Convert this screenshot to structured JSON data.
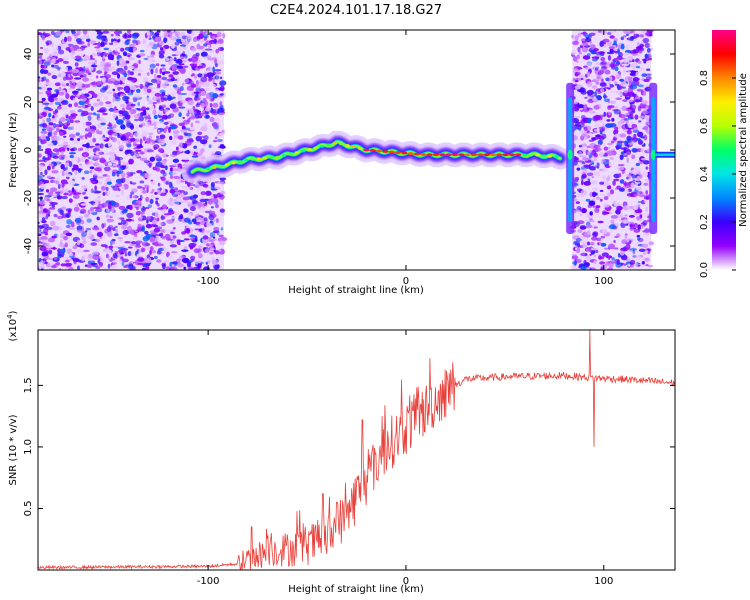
{
  "figure": {
    "title": "C2E4.2024.101.17.18.G27"
  },
  "chart_data": [
    {
      "type": "heatmap",
      "name": "spectrogram",
      "xlabel": "Height of straight line (km)",
      "ylabel": "Frequency (Hz)",
      "xlim": [
        -186,
        136
      ],
      "ylim": [
        -50,
        50
      ],
      "x_ticks": [
        -100,
        0,
        100
      ],
      "y_ticks": [
        -40,
        -20,
        0,
        20,
        40
      ],
      "grid": false,
      "colorbar": {
        "label": "Normalized spectral amplitude",
        "range": [
          0,
          1
        ],
        "ticks": [
          0.0,
          0.2,
          0.4,
          0.6,
          0.8
        ],
        "tick_labels": [
          "0.0",
          "0.2",
          "0.4",
          "0.6",
          "0.8"
        ],
        "colormap": [
          "#ffffff",
          "#9400ff",
          "#3a00ff",
          "#0088ff",
          "#00e5e5",
          "#00ff66",
          "#b6ff00",
          "#ffee00",
          "#ff8800",
          "#ff0000",
          "#ff0088"
        ]
      },
      "noise_regions": [
        {
          "x_range": [
            -186,
            -92
          ],
          "y_range": [
            -50,
            50
          ]
        },
        {
          "x_range": [
            84,
            124
          ],
          "y_range": [
            -50,
            50
          ]
        }
      ],
      "ridge": {
        "points": [
          [
            -108,
            -9
          ],
          [
            -95,
            -7
          ],
          [
            -80,
            -4
          ],
          [
            -65,
            -3
          ],
          [
            -50,
            0
          ],
          [
            -35,
            3
          ],
          [
            -20,
            0
          ],
          [
            -5,
            -1
          ],
          [
            10,
            -2
          ],
          [
            30,
            -2
          ],
          [
            50,
            -2
          ],
          [
            65,
            -2
          ],
          [
            78,
            -3
          ]
        ],
        "peak_x": [
          -20,
          60
        ],
        "features_at_x": [
          83,
          125
        ]
      }
    },
    {
      "type": "line",
      "name": "snr",
      "xlabel": "Height of straight line (km)",
      "ylabel": "SNR (10 * v/v)",
      "y_multiplier": "(x10",
      "y_multiplier_exponent": "4",
      "y_multiplier_close": ")",
      "xlim": [
        -186,
        136
      ],
      "ylim": [
        0,
        1.95
      ],
      "x_ticks": [
        -100,
        0,
        100
      ],
      "y_ticks": [
        0.5,
        1.0,
        1.5
      ],
      "y_tick_labels": [
        "0.5",
        "1.0",
        "1.5"
      ],
      "grid": false,
      "color": "#e8403a",
      "envelope": [
        [
          -186,
          0.02
        ],
        [
          -100,
          0.03
        ],
        [
          -85,
          0.05
        ],
        [
          -70,
          0.15
        ],
        [
          -55,
          0.18
        ],
        [
          -40,
          0.25
        ],
        [
          -30,
          0.45
        ],
        [
          -20,
          0.75
        ],
        [
          -10,
          1.0
        ],
        [
          0,
          1.15
        ],
        [
          10,
          1.3
        ],
        [
          20,
          1.45
        ],
        [
          30,
          1.55
        ],
        [
          50,
          1.57
        ],
        [
          80,
          1.58
        ],
        [
          95,
          1.56
        ],
        [
          110,
          1.55
        ],
        [
          136,
          1.52
        ]
      ],
      "spikes": [
        [
          -78,
          0.35
        ],
        [
          -68,
          0.3
        ],
        [
          -52,
          0.38
        ],
        [
          -42,
          0.62
        ],
        [
          -35,
          0.55
        ],
        [
          -22,
          1.22
        ],
        [
          -12,
          1.25
        ],
        [
          2,
          1.42
        ],
        [
          12,
          1.72
        ],
        [
          22,
          1.6
        ],
        [
          93,
          1.95
        ],
        [
          95,
          1.0
        ]
      ]
    }
  ]
}
